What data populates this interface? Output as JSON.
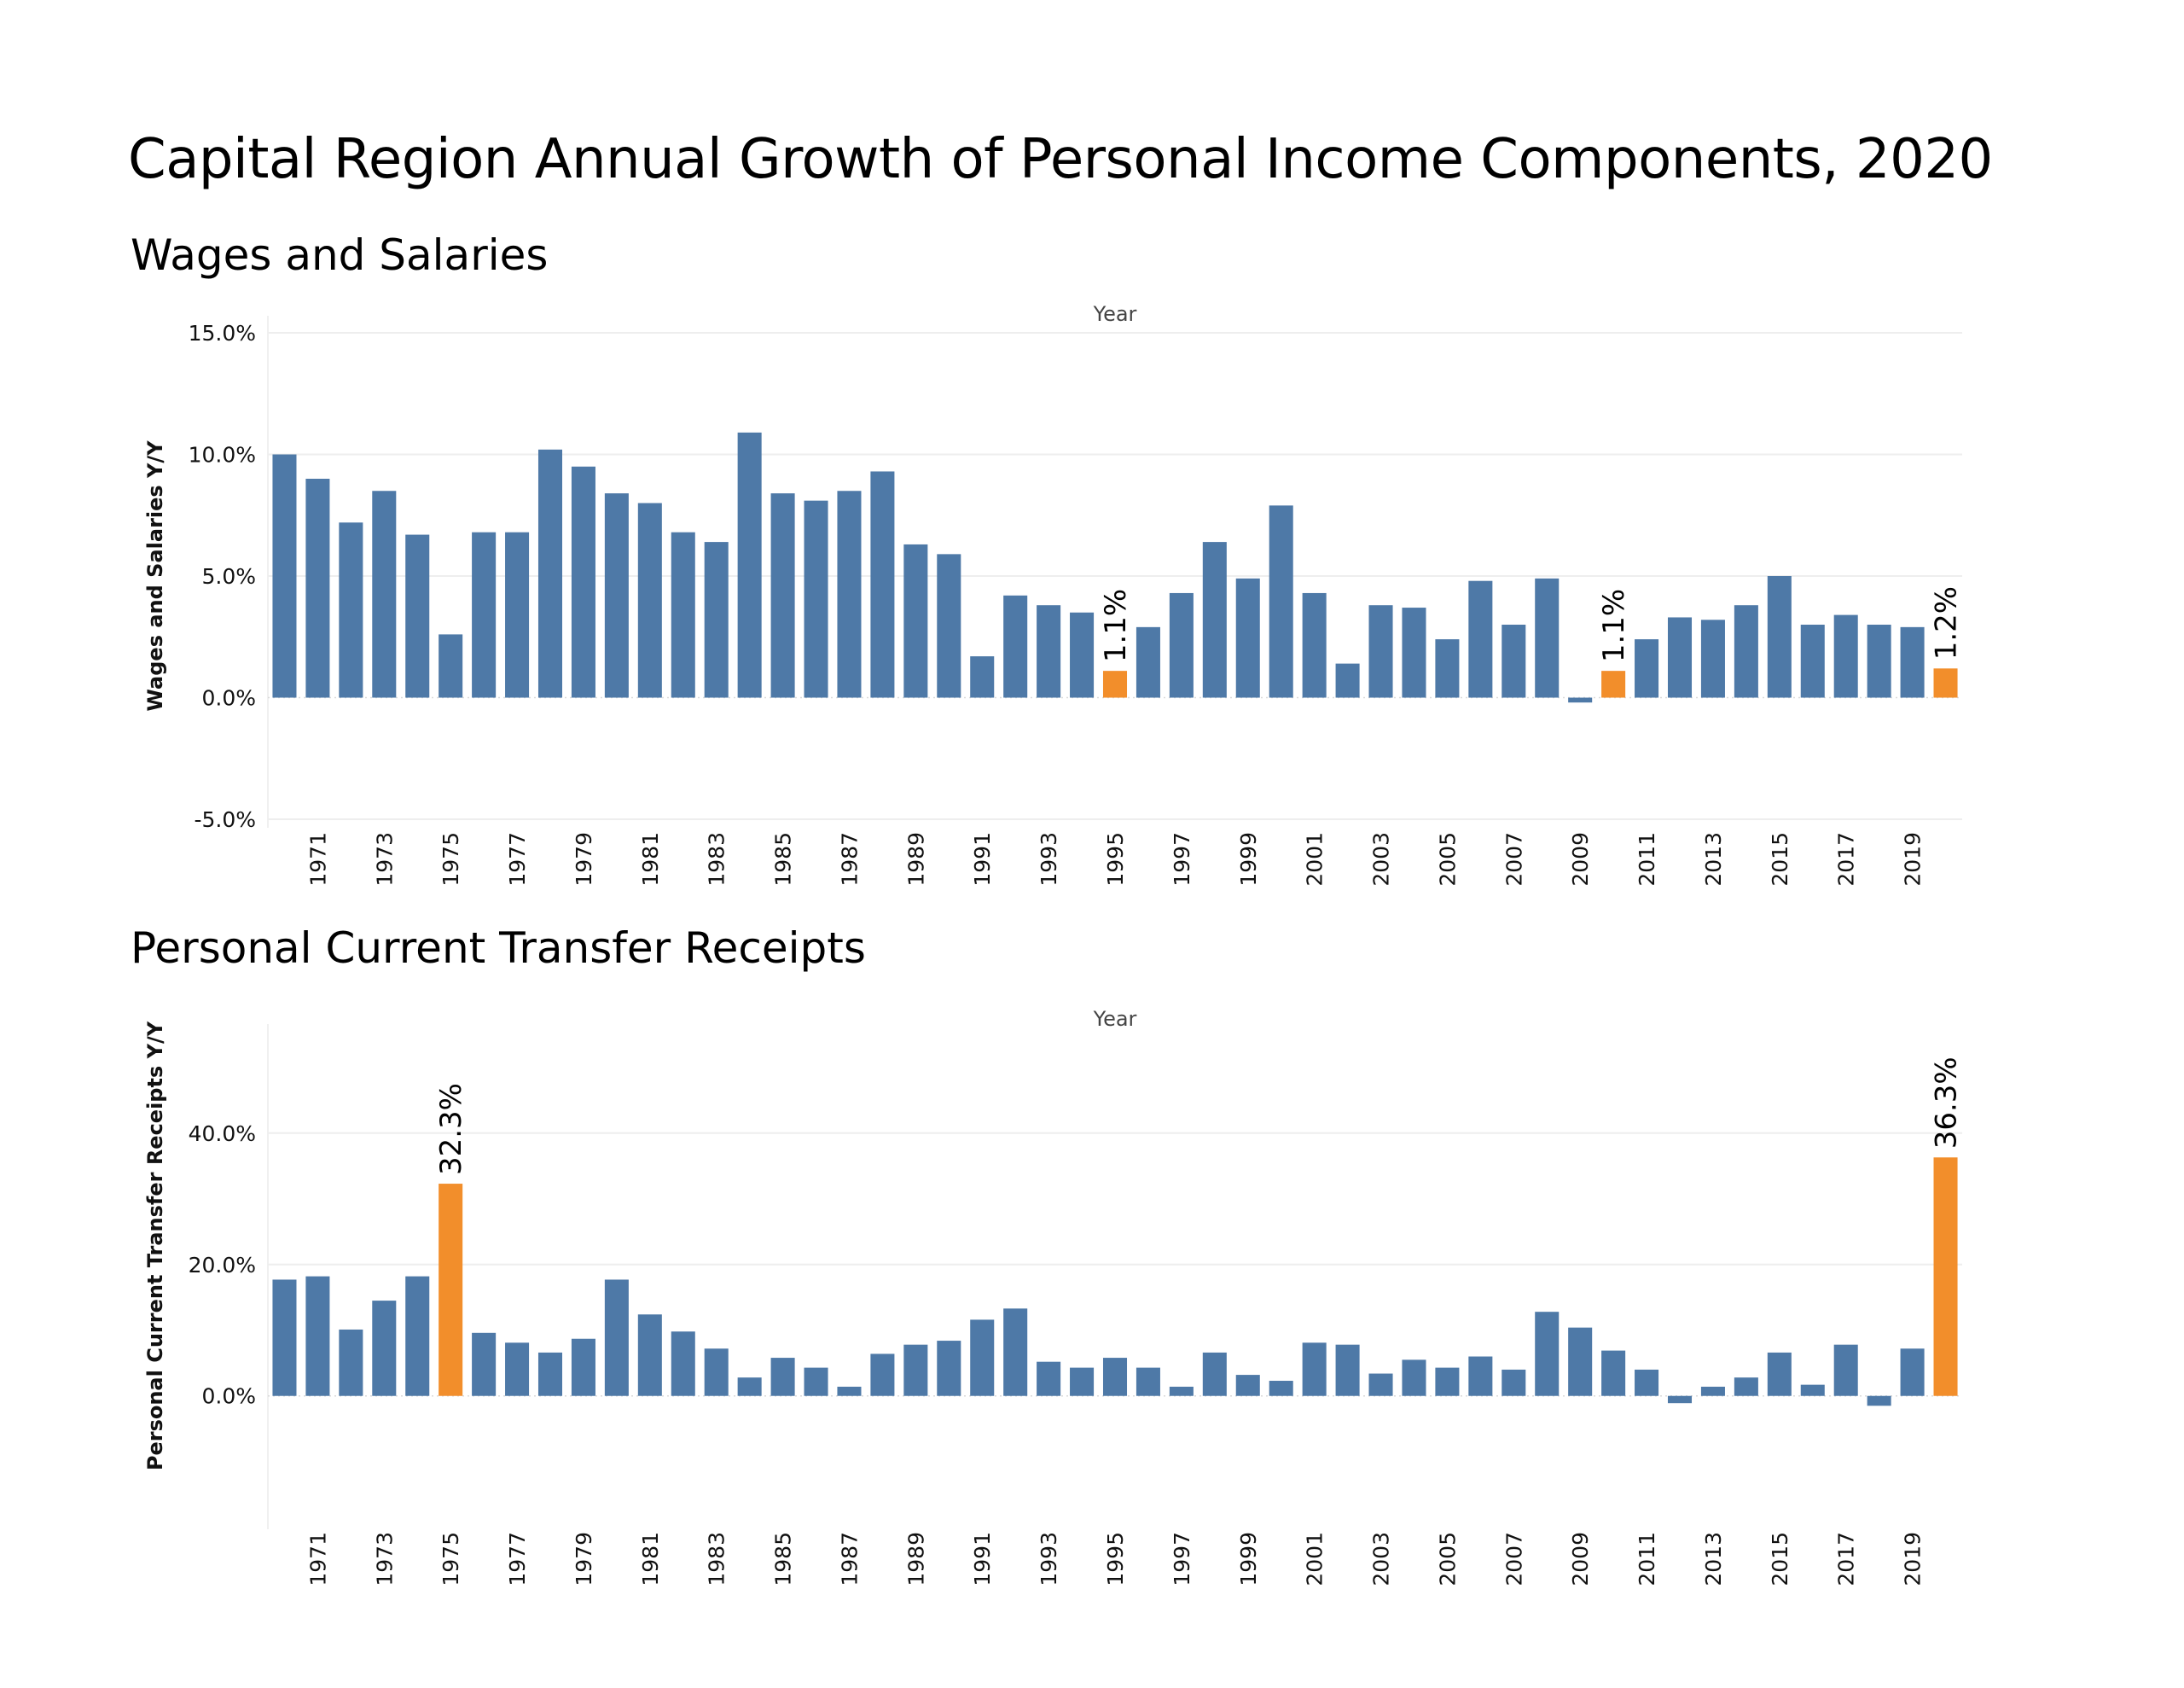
{
  "page": {
    "title": "Capital Region Annual Growth of Personal Income Components, 2020"
  },
  "colors": {
    "bar": "#4e79a7",
    "highlight": "#f28e2b",
    "grid": "#eeeeee"
  },
  "chart_data": [
    {
      "type": "bar",
      "title": "Wages and Salaries",
      "xlabel": "Year",
      "ylabel": "Wages and Salaries Y/Y",
      "ylim": [
        -5.0,
        15.0
      ],
      "yticks": [
        15.0,
        10.0,
        5.0,
        0.0,
        -5.0
      ],
      "ytick_labels": [
        "15.0%",
        "10.0%",
        "5.0%",
        "0.0%",
        "-5.0%"
      ],
      "grid": true,
      "categories": [
        1970,
        1971,
        1972,
        1973,
        1974,
        1975,
        1976,
        1977,
        1978,
        1979,
        1980,
        1981,
        1982,
        1983,
        1984,
        1985,
        1986,
        1987,
        1988,
        1989,
        1990,
        1991,
        1992,
        1993,
        1994,
        1995,
        1996,
        1997,
        1998,
        1999,
        2000,
        2001,
        2002,
        2003,
        2004,
        2005,
        2006,
        2007,
        2008,
        2009,
        2010,
        2011,
        2012,
        2013,
        2014,
        2015,
        2016,
        2017,
        2018,
        2019,
        2020
      ],
      "xtick_labels": [
        "1971",
        "1973",
        "1975",
        "1977",
        "1979",
        "1981",
        "1983",
        "1985",
        "1987",
        "1989",
        "1991",
        "1993",
        "1995",
        "1997",
        "1999",
        "2001",
        "2003",
        "2005",
        "2007",
        "2009",
        "2011",
        "2013",
        "2015",
        "2017",
        "2019"
      ],
      "values": [
        10.0,
        9.0,
        7.2,
        8.5,
        6.7,
        2.6,
        6.8,
        6.8,
        10.2,
        9.5,
        8.4,
        8.0,
        6.8,
        6.4,
        10.9,
        8.4,
        8.1,
        8.5,
        9.3,
        6.3,
        5.9,
        1.7,
        4.2,
        3.8,
        3.5,
        1.1,
        2.9,
        4.3,
        6.4,
        4.9,
        7.9,
        4.3,
        1.4,
        3.8,
        3.7,
        2.4,
        4.8,
        3.0,
        4.9,
        -0.2,
        1.1,
        2.4,
        3.3,
        3.2,
        3.8,
        5.0,
        3.0,
        3.4,
        3.0,
        2.9,
        1.2
      ],
      "highlighted": [
        1995,
        2010,
        2020
      ],
      "data_labels": [
        {
          "year": 1995,
          "text": "1.1%"
        },
        {
          "year": 2010,
          "text": "1.1%"
        },
        {
          "year": 2020,
          "text": "1.2%"
        }
      ]
    },
    {
      "type": "bar",
      "title": "Personal Current Transfer Receipts",
      "xlabel": "Year",
      "ylabel": "Personal Current Transfer Receipts Y/Y",
      "ylim": [
        -19.0,
        54.0
      ],
      "yticks": [
        40.0,
        20.0,
        0.0
      ],
      "ytick_labels": [
        "40.0%",
        "20.0%",
        "0.0%"
      ],
      "grid": true,
      "categories": [
        1970,
        1971,
        1972,
        1973,
        1974,
        1975,
        1976,
        1977,
        1978,
        1979,
        1980,
        1981,
        1982,
        1983,
        1984,
        1985,
        1986,
        1987,
        1988,
        1989,
        1990,
        1991,
        1992,
        1993,
        1994,
        1995,
        1996,
        1997,
        1998,
        1999,
        2000,
        2001,
        2002,
        2003,
        2004,
        2005,
        2006,
        2007,
        2008,
        2009,
        2010,
        2011,
        2012,
        2013,
        2014,
        2015,
        2016,
        2017,
        2018,
        2019,
        2020
      ],
      "xtick_labels": [
        "1971",
        "1973",
        "1975",
        "1977",
        "1979",
        "1981",
        "1983",
        "1985",
        "1987",
        "1989",
        "1991",
        "1993",
        "1995",
        "1997",
        "1999",
        "2001",
        "2003",
        "2005",
        "2007",
        "2009",
        "2011",
        "2013",
        "2015",
        "2017",
        "2019"
      ],
      "values": [
        17.7,
        18.2,
        10.1,
        14.5,
        18.2,
        32.3,
        9.6,
        8.1,
        6.6,
        8.7,
        17.7,
        12.4,
        9.8,
        7.2,
        2.8,
        5.8,
        4.3,
        1.4,
        6.4,
        7.8,
        8.4,
        11.6,
        13.3,
        5.2,
        4.3,
        5.8,
        4.3,
        1.4,
        6.6,
        3.2,
        2.3,
        8.1,
        7.8,
        3.4,
        5.5,
        4.3,
        6.0,
        4.0,
        12.8,
        10.4,
        6.9,
        4.0,
        -1.1,
        1.4,
        2.8,
        6.6,
        1.7,
        7.8,
        -1.5,
        7.2,
        36.3
      ],
      "highlighted": [
        1975,
        2020
      ],
      "data_labels": [
        {
          "year": 1975,
          "text": "32.3%"
        },
        {
          "year": 2020,
          "text": "36.3%"
        }
      ]
    }
  ]
}
